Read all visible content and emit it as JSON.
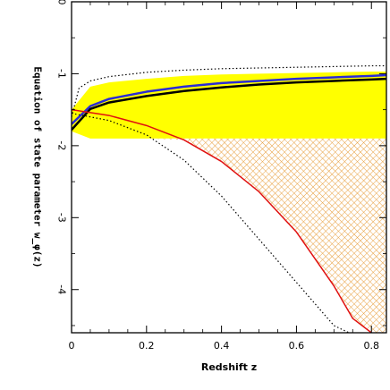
{
  "chart_data": {
    "type": "area",
    "title": "",
    "xlabel": "Redshift z",
    "ylabel": "Equation of state parameter w_φ(z)",
    "xlim": [
      0,
      0.84
    ],
    "ylim": [
      -4.6,
      0
    ],
    "x_ticks": [
      "0",
      "0.2",
      "0.4",
      "0.6",
      "0.8"
    ],
    "y_ticks": [
      "0",
      "-1",
      "-2",
      "-3",
      "-4"
    ],
    "ytick_orientation": "rotated 180°",
    "grid": false,
    "legend": "none",
    "colors": {
      "yellow_band": "#ffff00",
      "hatch_region": "#e8b060",
      "blue_curve": "#2b2bd6",
      "red_curve": "#e01010",
      "black_curve": "#000000",
      "dotted_curve": "#000000"
    },
    "series": [
      {
        "x": [
          0,
          0.05,
          0.1,
          0.2,
          0.3,
          0.4,
          0.5,
          0.6,
          0.7,
          0.8,
          0.84
        ],
        "values": [
          -1.7,
          -1.45,
          -1.35,
          -1.25,
          -1.18,
          -1.13,
          -1.1,
          -1.07,
          -1.05,
          -1.03,
          -1.02
        ]
      },
      {
        "x": [
          0,
          0.05,
          0.1,
          0.2,
          0.3,
          0.4,
          0.5,
          0.6,
          0.7,
          0.8,
          0.84
        ],
        "values": [
          -1.78,
          -1.49,
          -1.4,
          -1.31,
          -1.24,
          -1.19,
          -1.15,
          -1.12,
          -1.1,
          -1.08,
          -1.07
        ]
      },
      {
        "x": [
          0,
          0.1,
          0.2,
          0.3,
          0.4,
          0.5,
          0.6,
          0.7,
          0.75,
          0.8
        ],
        "values": [
          -1.5,
          -1.58,
          -1.72,
          -1.92,
          -2.22,
          -2.64,
          -3.2,
          -3.95,
          -4.4,
          -4.6
        ]
      },
      {
        "x": [
          0,
          0.02,
          0.05,
          0.1,
          0.2,
          0.3,
          0.4,
          0.5,
          0.6,
          0.7,
          0.8,
          0.84
        ],
        "values": [
          -1.6,
          -1.2,
          -1.1,
          -1.04,
          -0.98,
          -0.95,
          -0.93,
          -0.92,
          -0.91,
          -0.9,
          -0.89,
          -0.89
        ]
      },
      {
        "x": [
          0,
          0.1,
          0.2,
          0.3,
          0.4,
          0.5,
          0.6,
          0.7,
          0.74
        ],
        "values": [
          -1.55,
          -1.65,
          -1.85,
          -2.2,
          -2.7,
          -3.3,
          -3.9,
          -4.5,
          -4.6
        ]
      }
    ],
    "bands": [
      {
        "kind": "filled yellow",
        "x": [
          0,
          0.05,
          0.1,
          0.2,
          0.3,
          0.4,
          0.5,
          0.6,
          0.7,
          0.8,
          0.84
        ],
        "upper": [
          -1.5,
          -1.18,
          -1.12,
          -1.07,
          -1.03,
          -1.01,
          -1.0,
          -0.99,
          -0.98,
          -0.97,
          -0.97
        ],
        "lower": [
          -1.8,
          -1.9,
          -1.9,
          -1.9,
          -1.9,
          -1.9,
          -1.9,
          -1.9,
          -1.9,
          -1.9,
          -1.9
        ]
      },
      {
        "kind": "cross-hatched",
        "x": [
          0,
          0.1,
          0.2,
          0.3,
          0.4,
          0.5,
          0.6,
          0.7,
          0.75,
          0.8,
          0.84
        ],
        "upper": [
          -1.9,
          -1.9,
          -1.9,
          -1.9,
          -1.9,
          -1.9,
          -1.9,
          -1.9,
          -1.9,
          -1.9,
          -1.9
        ],
        "lower": [
          -1.9,
          -1.9,
          -1.9,
          -1.92,
          -2.22,
          -2.64,
          -3.2,
          -3.95,
          -4.4,
          -4.6,
          -4.6
        ]
      }
    ]
  }
}
